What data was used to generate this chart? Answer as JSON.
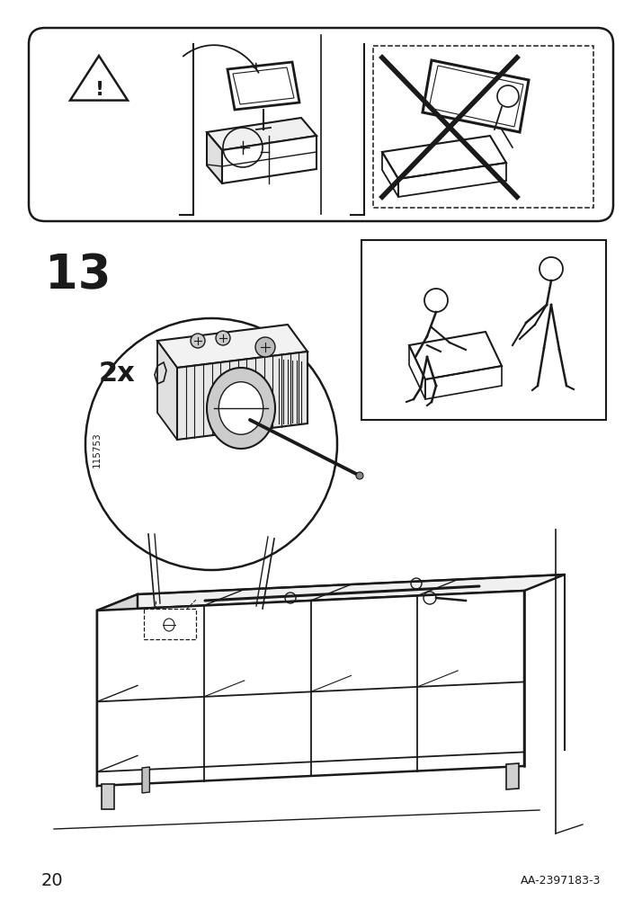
{
  "background_color": "#ffffff",
  "page_number": "20",
  "page_code": "AA-2397183-3",
  "step_number": "13",
  "quantity_label": "2x",
  "part_number": "115753",
  "fig_width": 7.14,
  "fig_height": 10.12,
  "dpi": 100
}
